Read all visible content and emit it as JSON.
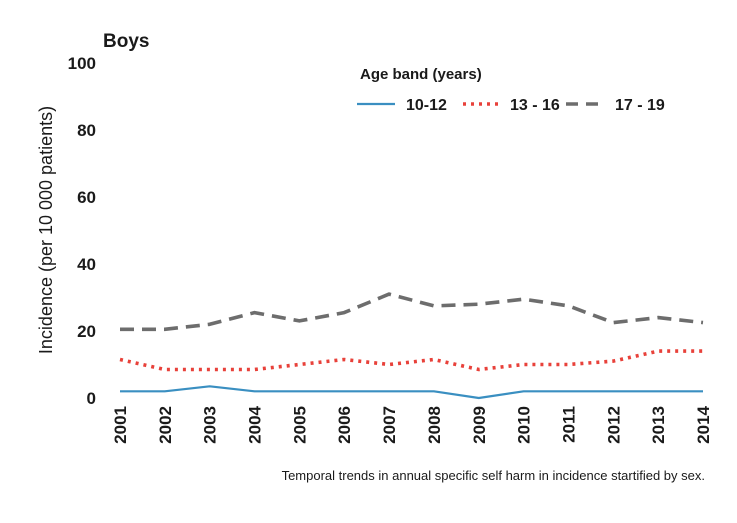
{
  "chart_data": {
    "type": "line",
    "title": "Boys",
    "ylabel": "Incidence (per 10 000 patients)",
    "xlabel": "",
    "ylim": [
      0,
      100
    ],
    "yticks": [
      0,
      20,
      40,
      60,
      80,
      100
    ],
    "categories": [
      "2001",
      "2002",
      "2003",
      "2004",
      "2005",
      "2006",
      "2007",
      "2008",
      "2009",
      "2010",
      "2011",
      "2012",
      "2013",
      "2014"
    ],
    "legend_title": "Age band (years)",
    "series": [
      {
        "name": "10-12",
        "color": "#3a8fc1",
        "style": "solid",
        "values": [
          2,
          2,
          3.5,
          2,
          2,
          2,
          2,
          2,
          0,
          2,
          2,
          2,
          2,
          2
        ]
      },
      {
        "name": "13 - 16",
        "color": "#e8413a",
        "style": "dotted",
        "values": [
          11.5,
          8.5,
          8.5,
          8.5,
          10,
          11.5,
          10,
          11.5,
          8.5,
          10,
          10,
          11,
          14,
          14
        ]
      },
      {
        "name": "17 - 19",
        "color": "#6d6d6d",
        "style": "dashed",
        "values": [
          20.5,
          20.5,
          22,
          25.5,
          23,
          25.5,
          31,
          27.5,
          28,
          29.5,
          27.5,
          22.5,
          24,
          22.5
        ]
      }
    ],
    "caption": "Temporal trends in annual specific self harm in incidence startified by sex."
  }
}
